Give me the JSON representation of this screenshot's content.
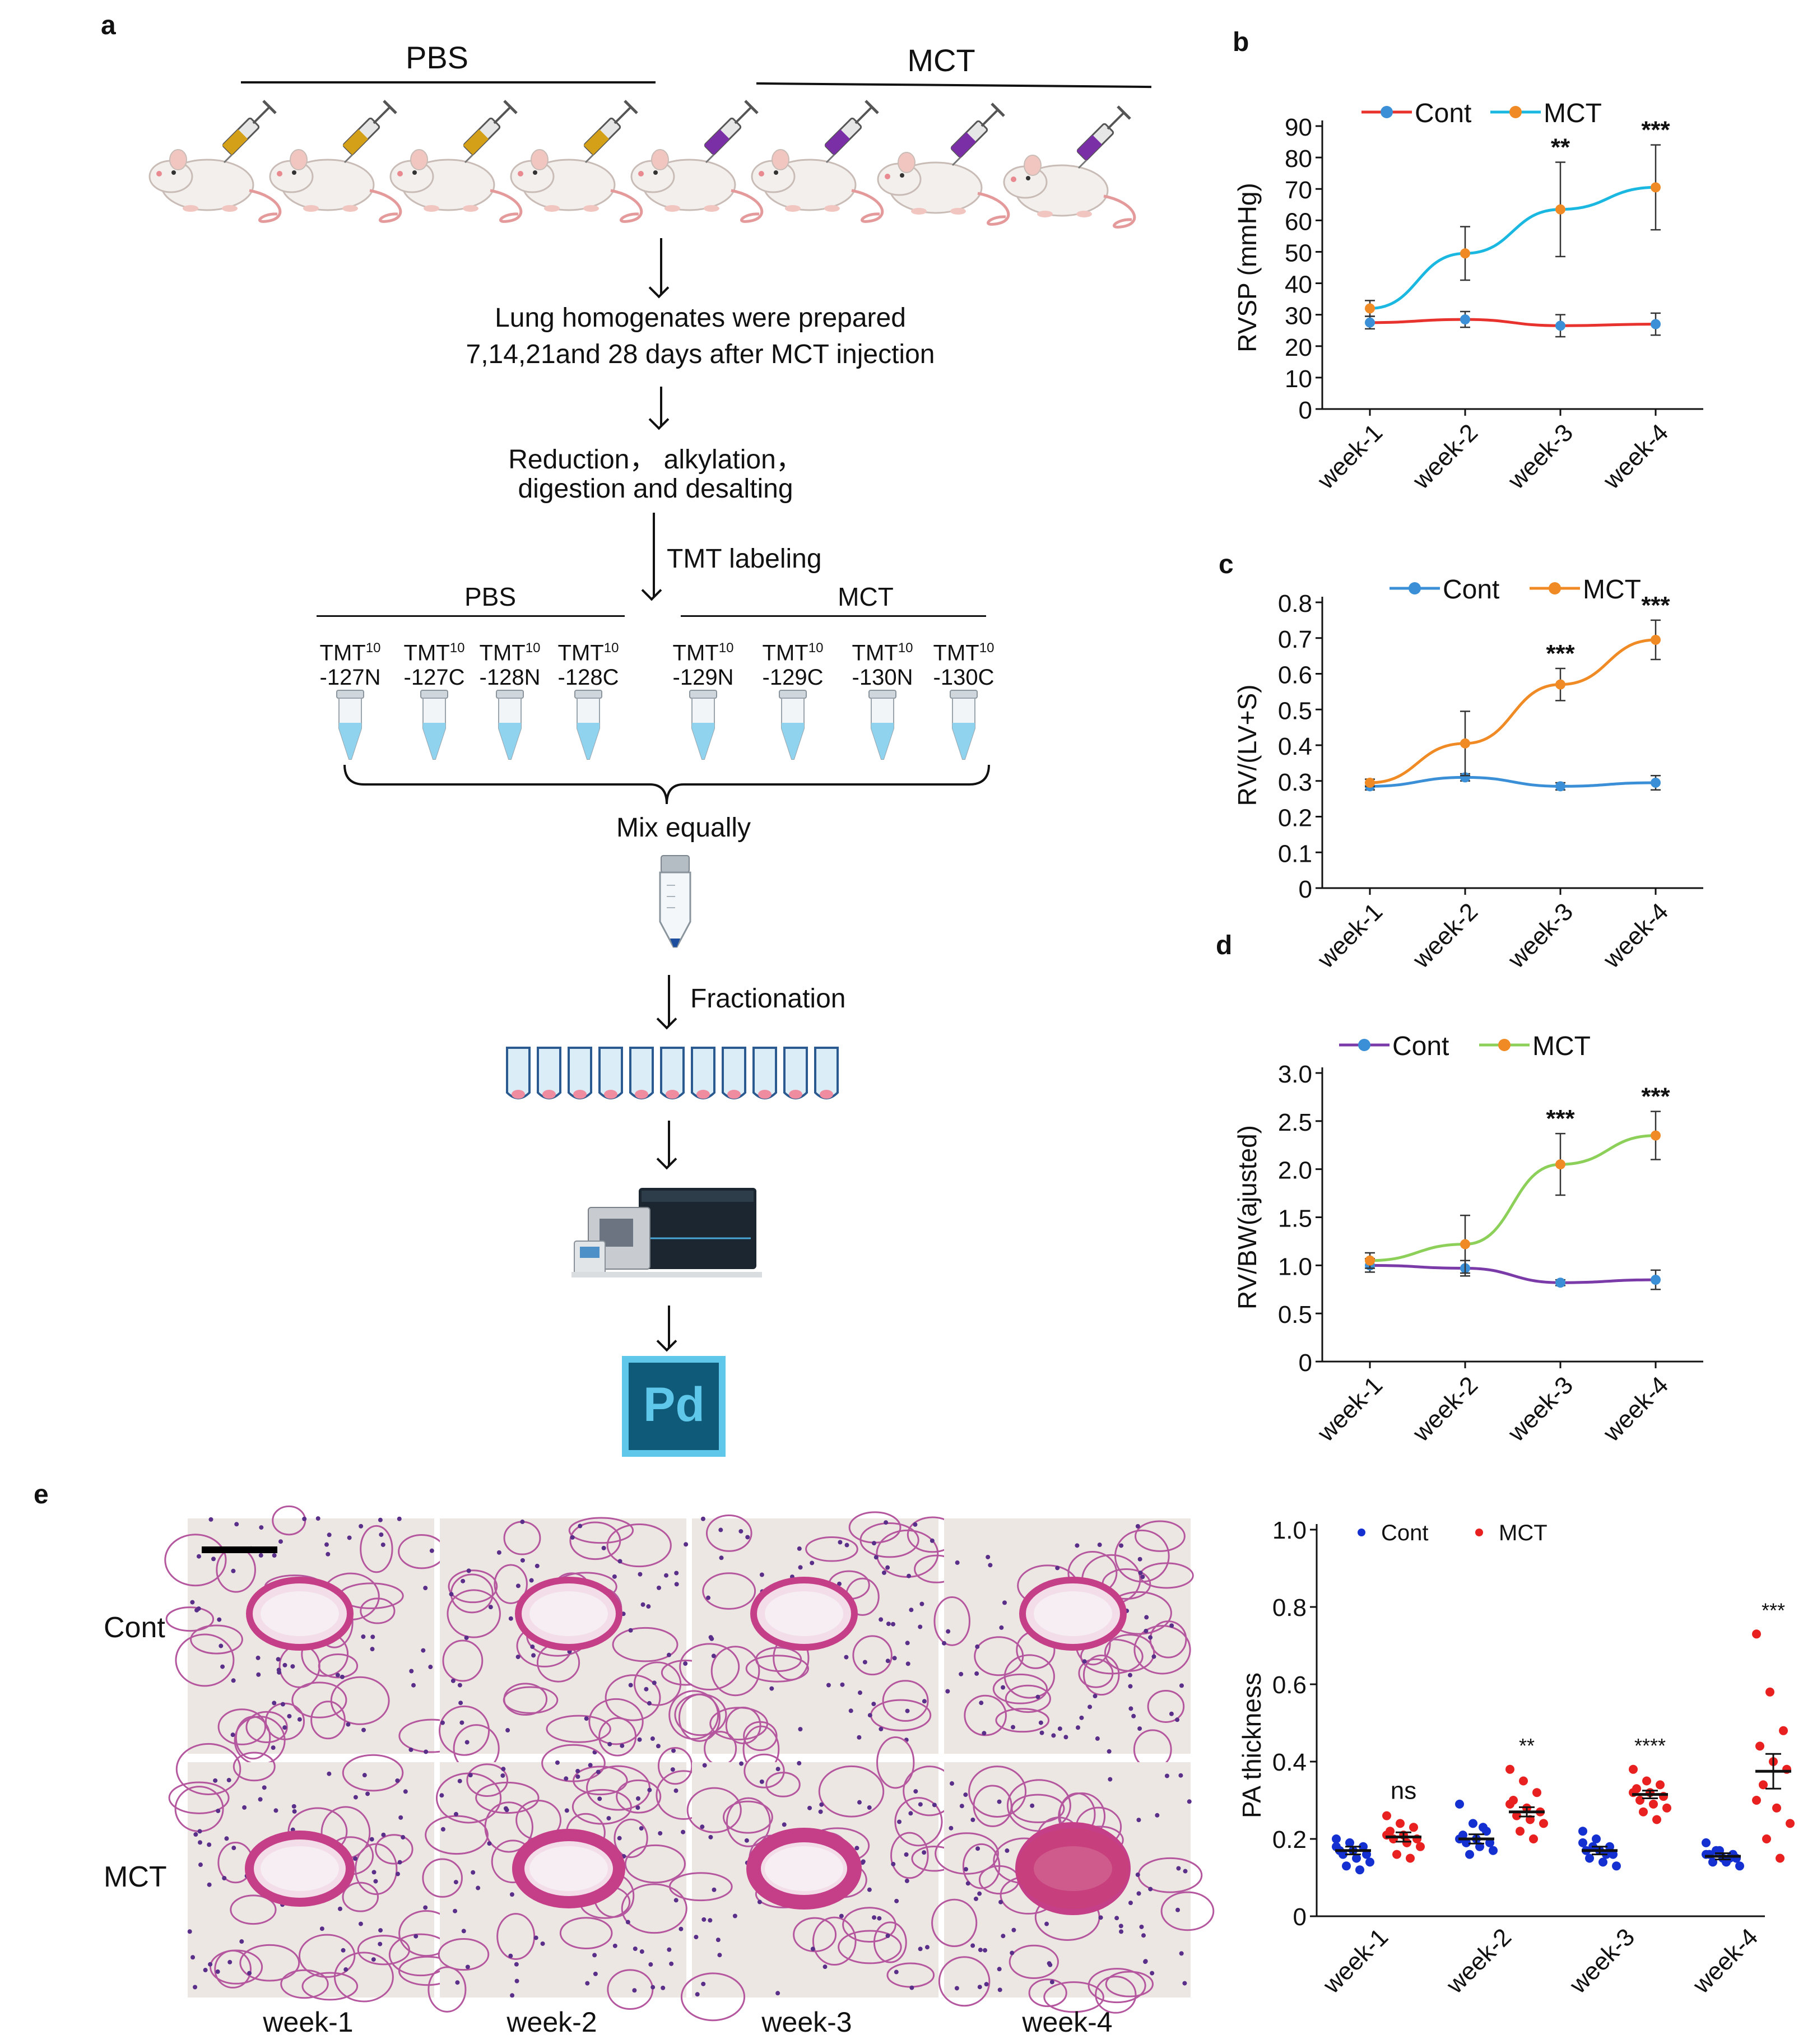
{
  "panel_a": {
    "letter": "a",
    "group_left": "PBS",
    "group_right": "MCT",
    "step1_line1": "Lung homogenates were prepared",
    "step1_line2": "7,14,21and 28 days after MCT injection",
    "step2_line1": "Reduction， alkylation，",
    "step2_line2": "digestion and desalting",
    "tmt_labeling": "TMT labeling",
    "tmt_group_left": "PBS",
    "tmt_group_right": "MCT",
    "tmt_sup": "10",
    "tmt_prefix": "TMT",
    "channels": [
      "-127N",
      "-127C",
      "-128N",
      "-128C",
      "-129N",
      "-129C",
      "-130N",
      "-130C"
    ],
    "mix": "Mix equally",
    "fractionation": "Fractionation",
    "software_logo": "Pd",
    "colors": {
      "pbs_syringe": "#d4a017",
      "mct_syringe": "#7b2fa6",
      "tube_liquid": "#8fd3ef",
      "fraction_dot": "#f08ca0",
      "pd_logo": "#0f5a78"
    }
  },
  "panel_b": {
    "letter": "b"
  },
  "panel_c": {
    "letter": "c"
  },
  "panel_d": {
    "letter": "d"
  },
  "panel_e": {
    "letter": "e",
    "row_labels": [
      "Cont",
      "MCT"
    ],
    "col_labels": [
      "week-1",
      "week-2",
      "week-3",
      "week-4"
    ]
  },
  "chart_data": [
    {
      "id": "b",
      "type": "line",
      "ylabel": "RVSP (mmHg)",
      "ylim": [
        0,
        90
      ],
      "yticks": [
        0,
        10,
        20,
        30,
        40,
        50,
        60,
        70,
        80,
        90
      ],
      "categories": [
        "week-1",
        "week-2",
        "week-3",
        "week-4"
      ],
      "legend_position": "top",
      "series": [
        {
          "name": "Cont",
          "color": "#e8322d",
          "marker": "#3a8fd6",
          "values": [
            27.5,
            28.5,
            26.5,
            27
          ],
          "errors": [
            2,
            2.5,
            3.5,
            3.5
          ]
        },
        {
          "name": "MCT",
          "color": "#1ab8e0",
          "marker": "#f08a24",
          "values": [
            32,
            49.5,
            63.5,
            70.5
          ],
          "errors": [
            2.5,
            8.5,
            15,
            13.5
          ]
        }
      ],
      "significance": [
        "",
        "",
        "**",
        "***"
      ]
    },
    {
      "id": "c",
      "type": "line",
      "ylabel": "RV/(LV+S)",
      "ylim": [
        0,
        0.8
      ],
      "yticks": [
        0,
        0.1,
        0.2,
        0.3,
        0.4,
        0.5,
        0.6,
        0.7,
        0.8
      ],
      "categories": [
        "week-1",
        "week-2",
        "week-3",
        "week-4"
      ],
      "legend_position": "top",
      "series": [
        {
          "name": "Cont",
          "color": "#3a8fd6",
          "marker": "#3a8fd6",
          "values": [
            0.285,
            0.31,
            0.285,
            0.295
          ],
          "errors": [
            0.01,
            0.01,
            0.01,
            0.02
          ]
        },
        {
          "name": "MCT",
          "color": "#f08a24",
          "marker": "#f08a24",
          "values": [
            0.295,
            0.405,
            0.57,
            0.695
          ],
          "errors": [
            0.01,
            0.09,
            0.045,
            0.055
          ]
        }
      ],
      "significance": [
        "",
        "",
        "***",
        "***"
      ]
    },
    {
      "id": "d",
      "type": "line",
      "ylabel": "RV/BW(ajusted)",
      "ylim": [
        0,
        3.0
      ],
      "yticks": [
        0,
        0.5,
        1.0,
        1.5,
        2.0,
        2.5,
        3.0
      ],
      "ytick_labels": [
        "0",
        "0.5",
        "1.0",
        "1.5",
        "2.0",
        "2.5",
        "3.0"
      ],
      "categories": [
        "week-1",
        "week-2",
        "week-3",
        "week-4"
      ],
      "legend_position": "top",
      "series": [
        {
          "name": "Cont",
          "color": "#7a3aa8",
          "marker": "#3a8fd6",
          "values": [
            1.0,
            0.97,
            0.82,
            0.85
          ],
          "errors": [
            0.07,
            0.08,
            0.03,
            0.1
          ]
        },
        {
          "name": "MCT",
          "color": "#8cd05a",
          "marker": "#f08a24",
          "values": [
            1.05,
            1.22,
            2.05,
            2.35
          ],
          "errors": [
            0.08,
            0.3,
            0.32,
            0.25
          ]
        }
      ],
      "significance": [
        "",
        "",
        "***",
        "***"
      ]
    },
    {
      "id": "e",
      "type": "scatter",
      "ylabel": "PA thickness",
      "ylim": [
        0,
        1.0
      ],
      "yticks": [
        0,
        0.2,
        0.4,
        0.6,
        0.8,
        1.0
      ],
      "ytick_labels": [
        "0",
        "0.2",
        "0.4",
        "0.6",
        "0.8",
        "1.0"
      ],
      "categories": [
        "week-1",
        "week-2",
        "week-3",
        "week-4"
      ],
      "legend_position": "top",
      "series": [
        {
          "name": "Cont",
          "color": "#1530d0",
          "means": [
            0.17,
            0.2,
            0.17,
            0.155
          ],
          "sem": [
            0.01,
            0.012,
            0.01,
            0.008
          ],
          "points": [
            [
              0.2,
              0.19,
              0.18,
              0.17,
              0.17,
              0.16,
              0.16,
              0.15,
              0.14,
              0.13,
              0.12,
              0.18
            ],
            [
              0.29,
              0.24,
              0.22,
              0.21,
              0.2,
              0.19,
              0.19,
              0.18,
              0.17,
              0.16,
              0.23,
              0.2
            ],
            [
              0.22,
              0.2,
              0.18,
              0.17,
              0.17,
              0.16,
              0.15,
              0.14,
              0.13,
              0.18,
              0.16,
              0.19
            ],
            [
              0.19,
              0.17,
              0.16,
              0.16,
              0.15,
              0.15,
              0.14,
              0.14,
              0.13,
              0.17,
              0.15,
              0.16
            ]
          ]
        },
        {
          "name": "MCT",
          "color": "#e82020",
          "means": [
            0.205,
            0.27,
            0.315,
            0.375
          ],
          "sem": [
            0.012,
            0.012,
            0.01,
            0.045
          ],
          "points": [
            [
              0.26,
              0.24,
              0.23,
              0.22,
              0.21,
              0.2,
              0.2,
              0.19,
              0.18,
              0.16,
              0.15,
              0.21
            ],
            [
              0.38,
              0.35,
              0.32,
              0.3,
              0.28,
              0.27,
              0.26,
              0.25,
              0.24,
              0.22,
              0.2,
              0.29
            ],
            [
              0.38,
              0.35,
              0.34,
              0.33,
              0.32,
              0.31,
              0.3,
              0.29,
              0.28,
              0.27,
              0.25,
              0.32
            ],
            [
              0.73,
              0.58,
              0.48,
              0.44,
              0.4,
              0.38,
              0.34,
              0.28,
              0.24,
              0.2,
              0.15,
              0.3
            ]
          ]
        }
      ],
      "significance": [
        "ns",
        "**",
        "****",
        "***"
      ]
    }
  ]
}
